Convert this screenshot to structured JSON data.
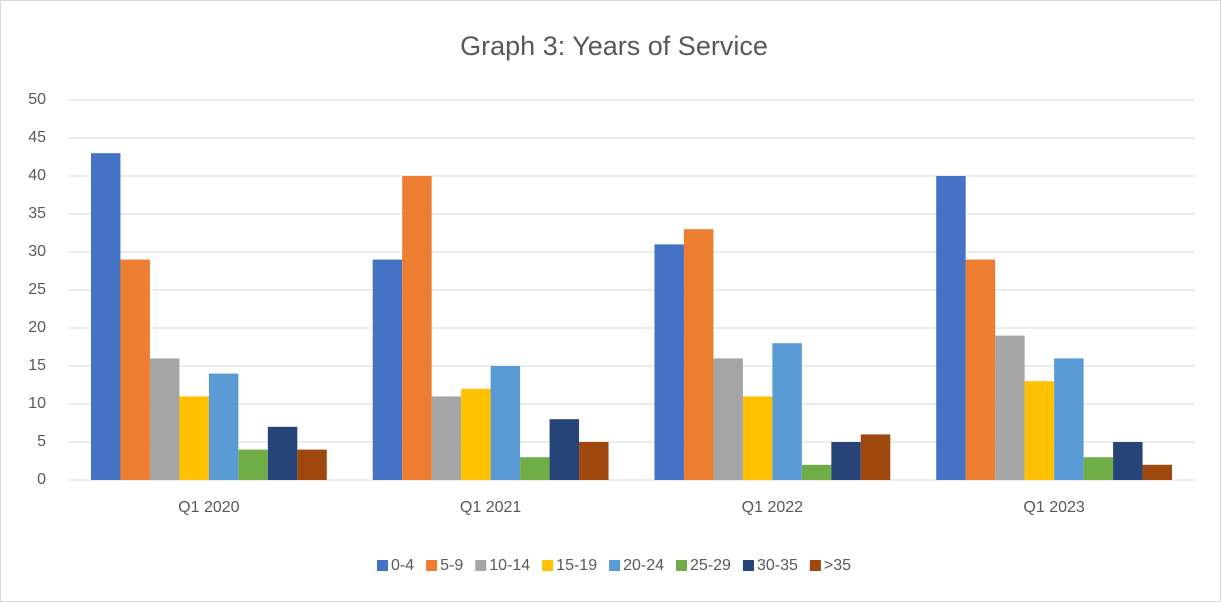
{
  "chart_data": {
    "type": "bar",
    "title": "Graph 3:  Years of Service",
    "categories": [
      "Q1 2020",
      "Q1 2021",
      "Q1 2022",
      "Q1 2023"
    ],
    "series": [
      {
        "name": "0-4",
        "color": "#4472c4",
        "values": [
          43,
          29,
          31,
          40
        ]
      },
      {
        "name": "5-9",
        "color": "#ed7d31",
        "values": [
          29,
          40,
          33,
          29
        ]
      },
      {
        "name": "10-14",
        "color": "#a5a5a5",
        "values": [
          16,
          11,
          16,
          19
        ]
      },
      {
        "name": "15-19",
        "color": "#ffc000",
        "values": [
          11,
          12,
          11,
          13
        ]
      },
      {
        "name": "20-24",
        "color": "#5b9bd5",
        "values": [
          14,
          15,
          18,
          16
        ]
      },
      {
        "name": "25-29",
        "color": "#70ad47",
        "values": [
          4,
          3,
          2,
          3
        ]
      },
      {
        "name": "30-35",
        "color": "#264478",
        "values": [
          7,
          8,
          5,
          5
        ]
      },
      {
        "name": ">35",
        "color": "#9e480e",
        "values": [
          4,
          5,
          6,
          2
        ]
      }
    ],
    "ylim": [
      0,
      50
    ],
    "yticks": [
      0,
      5,
      10,
      15,
      20,
      25,
      30,
      35,
      40,
      45,
      50
    ],
    "grid": true,
    "legend": "bottom"
  }
}
